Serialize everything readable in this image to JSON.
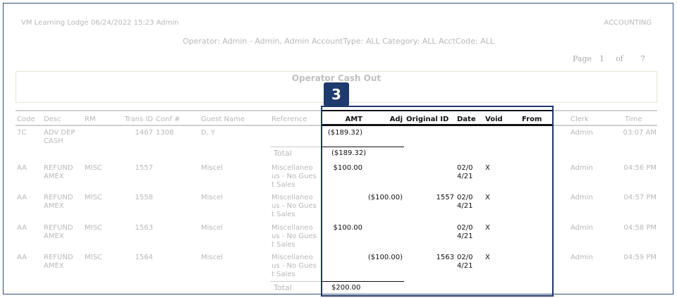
{
  "header": {
    "left": "VM Learning Lodge 06/24/2022 15:23 Admin",
    "right": "ACCOUNTING",
    "filter": "Operator: Admin - Admin, Admin AccountType: ALL Category: ALL AcctCode: ALL",
    "page": {
      "label": "Page",
      "current": "1",
      "of": "of",
      "total": "7"
    }
  },
  "report_title": "Operator Cash Out",
  "callout": "3",
  "table": {
    "columns": [
      "Code",
      "Desc",
      "RM",
      "Trans ID",
      "Conf #",
      "Guest Name",
      "Reference",
      "AMT",
      "Adj",
      "Original ID",
      "Date",
      "Void",
      "From",
      "Clerk",
      "Time"
    ],
    "rows": [
      [
        "7C",
        "ADV DEP CASH",
        null,
        "1467",
        "1308",
        "D, Y",
        null,
        "($189.32)",
        null,
        null,
        null,
        null,
        null,
        "Admin",
        "03:07 AM"
      ],
      [
        "AA",
        "REFUND AMEX",
        "MISC",
        "1557",
        null,
        "Miscel",
        "Miscellaneous - No Guest Sales",
        "$100.00",
        null,
        null,
        "02/04/21",
        "X",
        null,
        "Admin",
        "04:56 PM"
      ],
      [
        "AA",
        "REFUND AMEX",
        "MISC",
        "1558",
        null,
        "Miscel",
        "Miscellaneous - No Guest Sales",
        null,
        "($100.00)",
        "1557",
        "02/04/21",
        "X",
        null,
        "Admin",
        "04:57 PM"
      ],
      [
        "AA",
        "REFUND AMEX",
        "MISC",
        "1563",
        null,
        "Miscel",
        "Miscellaneous - No Guest Sales",
        "$100.00",
        null,
        null,
        "02/04/21",
        "X",
        null,
        "Admin",
        "04:58 PM"
      ],
      [
        "AA",
        "REFUND AMEX",
        "MISC",
        "1564",
        null,
        "Miscel",
        "Miscellaneous - No Guest Sales",
        null,
        "($100.00)",
        "1563",
        "02/04/21",
        "X",
        null,
        "Admin",
        "04:59 PM"
      ]
    ],
    "totals": [
      {
        "label": "Total",
        "amount": "($189.32)"
      },
      {
        "label": "Total",
        "amount": "$200.00"
      }
    ]
  }
}
